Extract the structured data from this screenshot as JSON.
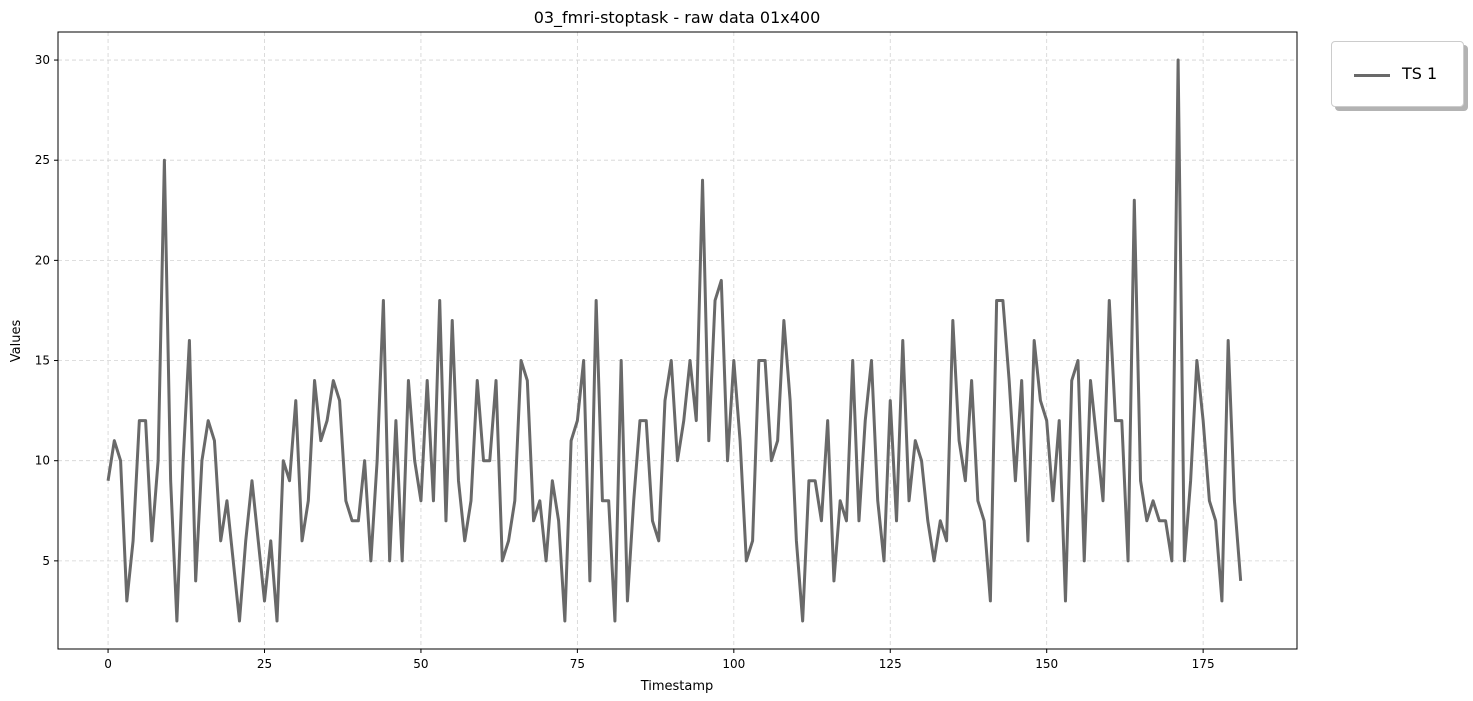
{
  "chart_data": {
    "type": "line",
    "title": "03_fmri-stoptask - raw data 01x400",
    "xlabel": "Timestamp",
    "ylabel": "Values",
    "xlim": [
      -8,
      190
    ],
    "ylim": [
      0.6,
      31.4
    ],
    "xticks": [
      0,
      25,
      50,
      75,
      100,
      125,
      150,
      175
    ],
    "yticks": [
      5,
      10,
      15,
      20,
      25,
      30
    ],
    "grid": true,
    "legend": "outside-top-right",
    "series": [
      {
        "name": "TS 1",
        "color": "#696969",
        "values": [
          9,
          11,
          10,
          3,
          6,
          12,
          12,
          6,
          10,
          25,
          9,
          2,
          10,
          16,
          4,
          10,
          12,
          11,
          6,
          8,
          5,
          2,
          6,
          9,
          6,
          3,
          6,
          2,
          10,
          9,
          13,
          6,
          8,
          14,
          11,
          12,
          14,
          13,
          8,
          7,
          7,
          10,
          5,
          10,
          18,
          5,
          12,
          5,
          14,
          10,
          8,
          14,
          8,
          18,
          7,
          17,
          9,
          6,
          8,
          14,
          10,
          10,
          14,
          5,
          6,
          8,
          15,
          14,
          7,
          8,
          5,
          9,
          7,
          2,
          11,
          12,
          15,
          4,
          18,
          8,
          8,
          2,
          15,
          3,
          8,
          12,
          12,
          7,
          6,
          13,
          15,
          10,
          12,
          15,
          12,
          24,
          11,
          18,
          19,
          10,
          15,
          11,
          5,
          6,
          15,
          15,
          10,
          11,
          17,
          13,
          6,
          2,
          9,
          9,
          7,
          12,
          4,
          8,
          7,
          15,
          7,
          12,
          15,
          8,
          5,
          13,
          7,
          16,
          8,
          11,
          10,
          7,
          5,
          7,
          6,
          17,
          11,
          9,
          14,
          8,
          7,
          3,
          18,
          18,
          14,
          9,
          14,
          6,
          16,
          13,
          12,
          8,
          12,
          3,
          14,
          15,
          5,
          14,
          11,
          8,
          18,
          12,
          12,
          5,
          23,
          9,
          7,
          8,
          7,
          7,
          5,
          30,
          5,
          9,
          15,
          12,
          8,
          7,
          3,
          16,
          8,
          4
        ]
      }
    ]
  }
}
